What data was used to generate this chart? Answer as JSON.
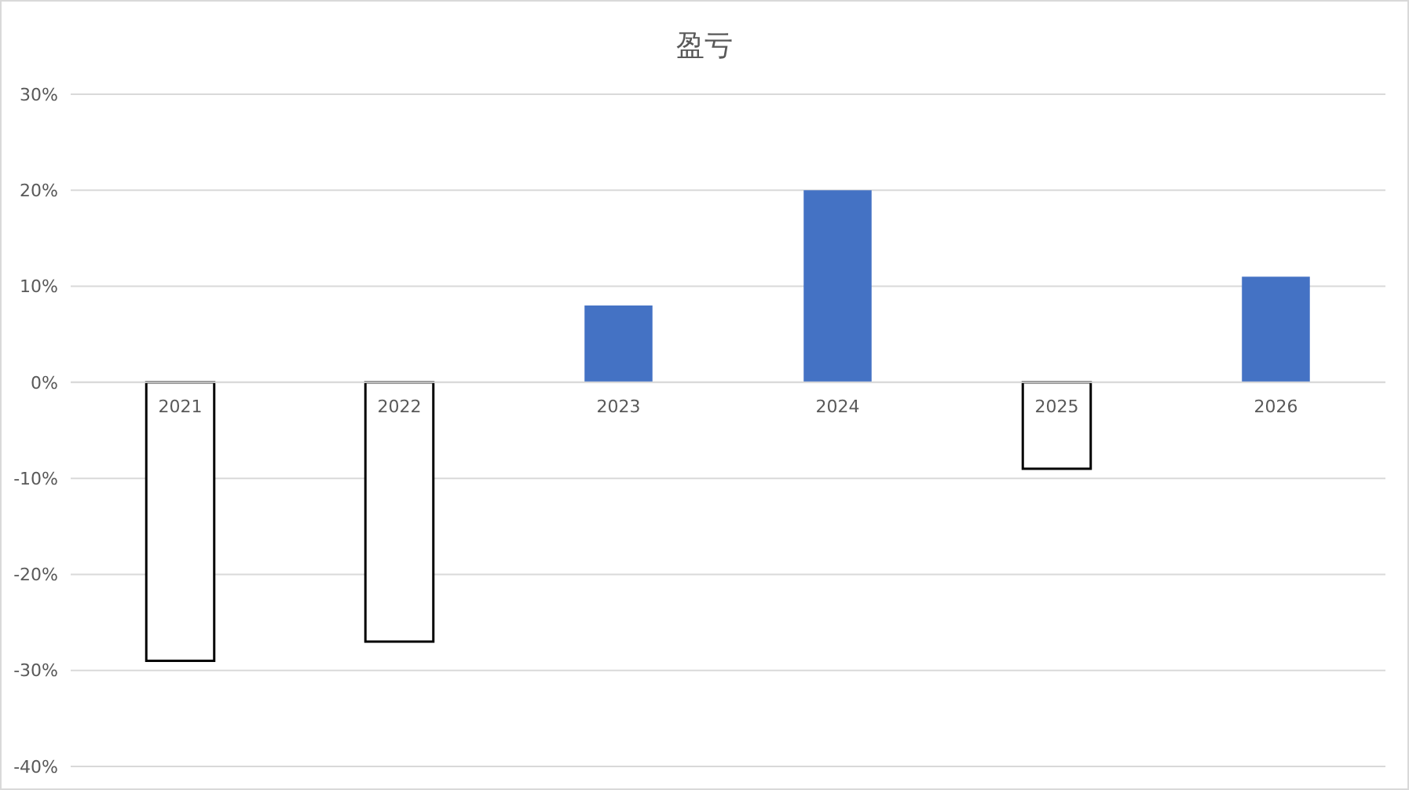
{
  "chart_data": {
    "type": "bar",
    "title": "盈亏",
    "categories": [
      "2021",
      "2022",
      "2023",
      "2024",
      "2025",
      "2026"
    ],
    "values": [
      -29,
      -27,
      8,
      20,
      -9,
      11
    ],
    "colors": [
      "#ffffff",
      "#ffffff",
      "#4472c4",
      "#4472c4",
      "#ffffff",
      "#4472c4"
    ],
    "ylim": [
      -40,
      30
    ],
    "yticks": [
      {
        "value": -40,
        "label": "-40%"
      },
      {
        "value": -30,
        "label": "-30%"
      },
      {
        "value": -20,
        "label": "-20%"
      },
      {
        "value": -10,
        "label": "-10%"
      },
      {
        "value": 0,
        "label": "0%"
      },
      {
        "value": 10,
        "label": "10%"
      },
      {
        "value": 20,
        "label": "20%"
      },
      {
        "value": 30,
        "label": "30%"
      }
    ],
    "grid": "y"
  }
}
